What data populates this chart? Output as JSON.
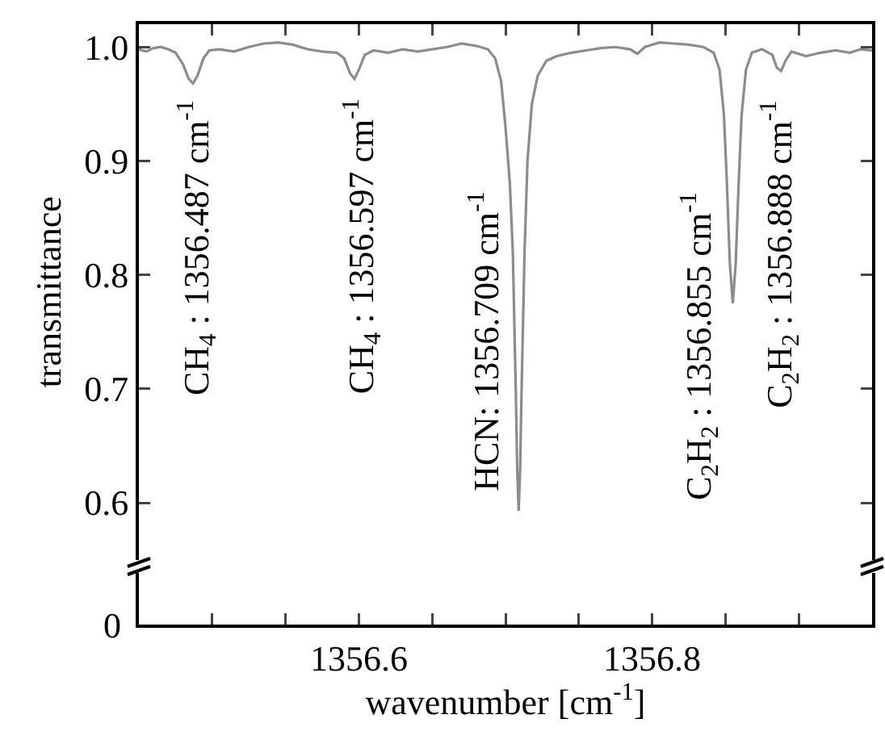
{
  "chart_data": {
    "type": "line",
    "xlabel": "wavenumber [cm$^{-1}$]",
    "ylabel": "transmittance",
    "xlim": [
      1356.45,
      1356.95
    ],
    "ylim": [
      0.55,
      1.02
    ],
    "xticks": [
      {
        "value": 1356.5,
        "label": null
      },
      {
        "value": 1356.55,
        "label": null
      },
      {
        "value": 1356.6,
        "label": "1356.6"
      },
      {
        "value": 1356.65,
        "label": null
      },
      {
        "value": 1356.7,
        "label": null
      },
      {
        "value": 1356.75,
        "label": null
      },
      {
        "value": 1356.8,
        "label": "1356.8"
      },
      {
        "value": 1356.85,
        "label": null
      },
      {
        "value": 1356.9,
        "label": null
      }
    ],
    "yticks": [
      {
        "value": 0.6,
        "label": "0.6"
      },
      {
        "value": 0.7,
        "label": "0.7"
      },
      {
        "value": 0.8,
        "label": "0.8"
      },
      {
        "value": 0.9,
        "label": "0.9"
      },
      {
        "value": 1.0,
        "label": "1.0"
      }
    ],
    "grid": false,
    "marker": "none",
    "line_style": "solid",
    "series": [
      {
        "color": "#8c8c8c",
        "x": [
          1356.45,
          1356.455,
          1356.46,
          1356.465,
          1356.47,
          1356.475,
          1356.48,
          1356.484,
          1356.487,
          1356.49,
          1356.494,
          1356.498,
          1356.505,
          1356.515,
          1356.525,
          1356.535,
          1356.545,
          1356.555,
          1356.565,
          1356.575,
          1356.585,
          1356.59,
          1356.594,
          1356.597,
          1356.6,
          1356.604,
          1356.61,
          1356.62,
          1356.63,
          1356.64,
          1356.65,
          1356.66,
          1356.67,
          1356.68,
          1356.688,
          1356.693,
          1356.697,
          1356.7,
          1356.703,
          1356.705,
          1356.707,
          1356.708,
          1356.709,
          1356.71,
          1356.711,
          1356.713,
          1356.715,
          1356.718,
          1356.722,
          1356.728,
          1356.735,
          1356.745,
          1356.755,
          1356.765,
          1356.775,
          1356.785,
          1356.79,
          1356.795,
          1356.805,
          1356.815,
          1356.825,
          1356.835,
          1356.842,
          1356.846,
          1356.849,
          1356.851,
          1356.853,
          1356.855,
          1356.857,
          1356.859,
          1356.861,
          1356.864,
          1356.868,
          1356.875,
          1356.882,
          1356.885,
          1356.888,
          1356.891,
          1356.895,
          1356.905,
          1356.915,
          1356.925,
          1356.935,
          1356.942,
          1356.95
        ],
        "values": [
          0.998,
          0.996,
          0.999,
          1.0,
          0.998,
          0.995,
          0.985,
          0.972,
          0.968,
          0.975,
          0.99,
          0.997,
          0.998,
          0.996,
          1.0,
          1.003,
          1.004,
          1.002,
          0.998,
          0.996,
          0.995,
          0.99,
          0.977,
          0.972,
          0.98,
          0.993,
          0.997,
          0.995,
          0.998,
          0.996,
          0.998,
          1.0,
          1.003,
          1.001,
          0.998,
          0.99,
          0.97,
          0.93,
          0.88,
          0.82,
          0.7,
          0.63,
          0.593,
          0.63,
          0.7,
          0.82,
          0.9,
          0.95,
          0.975,
          0.988,
          0.992,
          0.995,
          0.997,
          0.999,
          1.0,
          0.998,
          0.994,
          1.0,
          1.004,
          1.003,
          1.002,
          1.0,
          0.995,
          0.98,
          0.94,
          0.88,
          0.81,
          0.775,
          0.81,
          0.88,
          0.94,
          0.98,
          0.995,
          0.998,
          0.993,
          0.982,
          0.979,
          0.988,
          0.996,
          0.992,
          0.995,
          0.997,
          0.995,
          0.998,
          0.997
        ]
      }
    ],
    "annotations": [
      "CH$_{4}$ : 1356.487 cm$^{-1}$",
      "CH$_{4}$ : 1356.597 cm$^{-1}$",
      "HCN: 1356.709 cm$^{-1}$",
      "C$_{2}$H$_{2}$ : 1356.855 cm$^{-1}$",
      "C$_{2}$H$_{2}$ : 1356.888 cm$^{-1}$",
      "0"
    ]
  }
}
